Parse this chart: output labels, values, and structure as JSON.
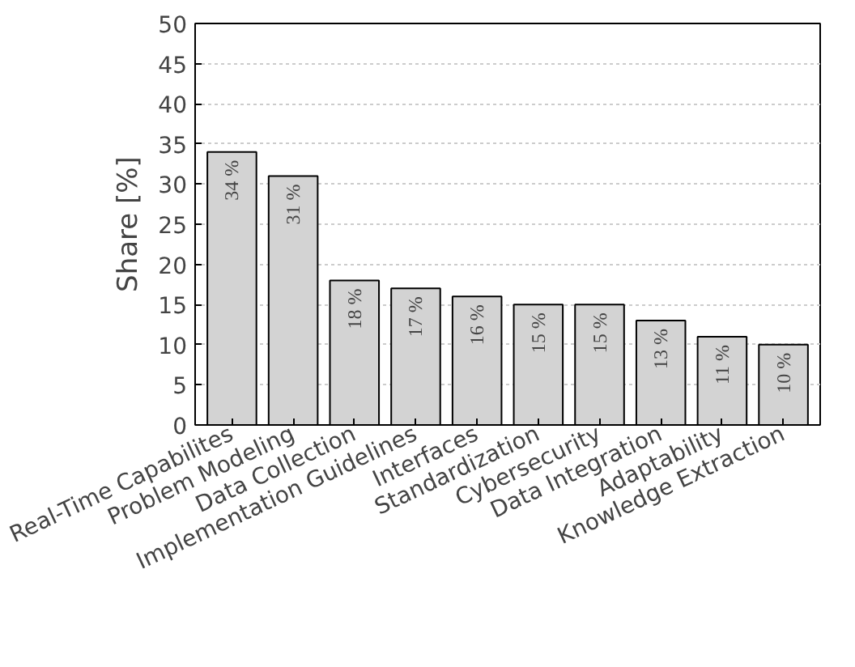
{
  "chart_data": {
    "type": "bar",
    "ylabel": "Share [%]",
    "categories": [
      "Real-Time Capabilites",
      "Problem Modeling",
      "Data Collection",
      "Implementation Guidelines",
      "Interfaces",
      "Standardization",
      "Cybersecurity",
      "Data Integration",
      "Adaptability",
      "Knowledge Extraction"
    ],
    "values": [
      34,
      31,
      18,
      17,
      16,
      15,
      15,
      13,
      11,
      10
    ],
    "value_labels": [
      "34 %",
      "31 %",
      "18 %",
      "17 %",
      "16 %",
      "15 %",
      "15 %",
      "13 %",
      "11 %",
      "10 %"
    ],
    "color": "#d3d3d3",
    "ylim": [
      0,
      50
    ],
    "yticks": [
      0,
      5,
      10,
      15,
      20,
      25,
      30,
      35,
      40,
      45,
      50
    ],
    "grid": "y"
  }
}
